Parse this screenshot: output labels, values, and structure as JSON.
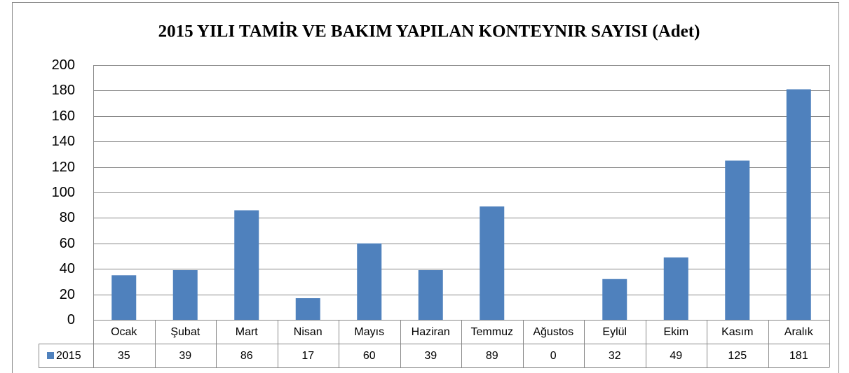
{
  "chart_data": {
    "type": "bar",
    "title": "2015 YILI TAMİR VE BAKIM YAPILAN KONTEYNIR SAYISI (Adet)",
    "categories": [
      "Ocak",
      "Şubat",
      "Mart",
      "Nisan",
      "Mayıs",
      "Haziran",
      "Temmuz",
      "Ağustos",
      "Eylül",
      "Ekim",
      "Kasım",
      "Aralık"
    ],
    "series": [
      {
        "name": "2015",
        "color": "#4f81bd",
        "values": [
          35,
          39,
          86,
          17,
          60,
          39,
          89,
          0,
          32,
          49,
          125,
          181
        ]
      }
    ],
    "ylim": [
      0,
      200
    ],
    "yticks": [
      0,
      20,
      40,
      60,
      80,
      100,
      120,
      140,
      160,
      180,
      200
    ],
    "grid": true,
    "legend": "data-table"
  }
}
